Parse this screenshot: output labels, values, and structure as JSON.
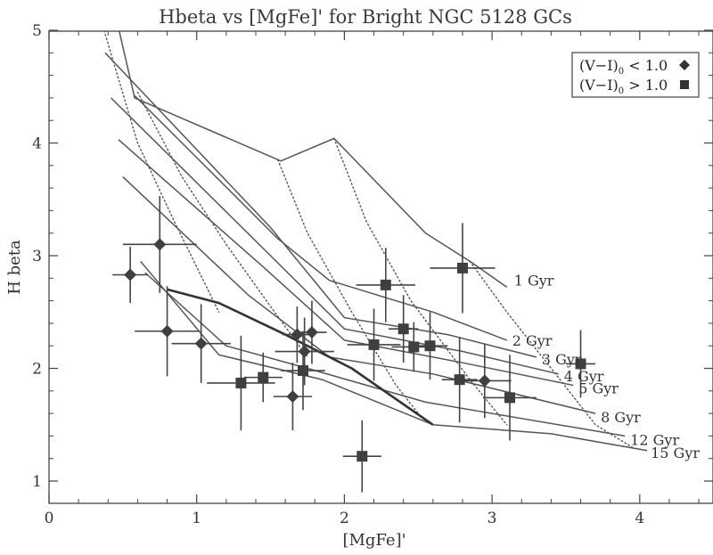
{
  "chart_data": {
    "type": "scatter",
    "title": "Hbeta vs [MgFe]' for Bright NGC 5128 GCs",
    "xlabel": "[MgFe]'",
    "ylabel": "H beta",
    "xlim": [
      0,
      4.5
    ],
    "ylim": [
      0.8,
      5.0
    ],
    "xticks": [
      0,
      1,
      2,
      3,
      4
    ],
    "yticks": [
      1,
      2,
      3,
      4,
      5
    ],
    "grid": false,
    "legend_position": "top-right",
    "legend": [
      {
        "prefix": "(V−I)",
        "sub": "0",
        "suffix": " < 1.0",
        "marker": "diamond"
      },
      {
        "prefix": "(V−I)",
        "sub": "0",
        "suffix": " > 1.0",
        "marker": "square"
      }
    ],
    "isochrones": [
      {
        "label": "1 Gyr",
        "points": [
          [
            0.43,
            5.25
          ],
          [
            0.58,
            4.4
          ],
          [
            1.57,
            3.84
          ],
          [
            1.93,
            4.04
          ],
          [
            2.55,
            3.2
          ],
          [
            2.85,
            2.95
          ],
          [
            3.1,
            2.72
          ]
        ]
      },
      {
        "label": "2 Gyr",
        "points": [
          [
            0.58,
            4.42
          ],
          [
            1.55,
            3.15
          ],
          [
            1.9,
            2.78
          ],
          [
            2.6,
            2.5
          ],
          [
            3.1,
            2.25
          ]
        ]
      },
      {
        "label": "3 Gyr",
        "points": [
          [
            0.38,
            4.8
          ],
          [
            1.5,
            3.25
          ],
          [
            2.0,
            2.45
          ],
          [
            2.7,
            2.3
          ],
          [
            3.3,
            2.1
          ]
        ]
      },
      {
        "label": "4 Gyr",
        "points": [
          [
            0.42,
            4.4
          ],
          [
            1.5,
            3.0
          ],
          [
            2.0,
            2.35
          ],
          [
            2.8,
            2.15
          ],
          [
            3.45,
            1.95
          ]
        ]
      },
      {
        "label": "5 Gyr",
        "points": [
          [
            0.47,
            4.03
          ],
          [
            1.45,
            2.9
          ],
          [
            2.0,
            2.25
          ],
          [
            2.8,
            2.05
          ],
          [
            3.55,
            1.85
          ]
        ]
      },
      {
        "label": "8 Gyr",
        "points": [
          [
            0.5,
            3.7
          ],
          [
            1.35,
            2.65
          ],
          [
            1.9,
            2.1
          ],
          [
            2.6,
            1.95
          ],
          [
            3.7,
            1.6
          ]
        ]
      },
      {
        "label": "12 Gyr",
        "points": [
          [
            0.65,
            2.85
          ],
          [
            1.2,
            2.2
          ],
          [
            1.75,
            2.0
          ],
          [
            2.55,
            1.7
          ],
          [
            3.9,
            1.4
          ]
        ]
      },
      {
        "label": "15 Gyr",
        "points": [
          [
            0.62,
            2.95
          ],
          [
            1.15,
            2.12
          ],
          [
            1.85,
            1.9
          ],
          [
            2.6,
            1.5
          ],
          [
            3.4,
            1.42
          ],
          [
            4.05,
            1.27
          ]
        ]
      }
    ],
    "thick_line": {
      "points": [
        [
          0.8,
          2.7
        ],
        [
          1.15,
          2.58
        ],
        [
          1.6,
          2.3
        ],
        [
          2.05,
          2.0
        ],
        [
          2.6,
          1.5
        ]
      ]
    },
    "metallicity_lines": [
      {
        "points": [
          [
            0.35,
            5.1
          ],
          [
            0.6,
            4.0
          ],
          [
            0.85,
            3.3
          ],
          [
            1.15,
            2.5
          ]
        ]
      },
      {
        "points": [
          [
            0.6,
            4.45
          ],
          [
            0.9,
            3.7
          ],
          [
            1.2,
            3.1
          ],
          [
            1.5,
            2.55
          ],
          [
            1.75,
            2.1
          ]
        ]
      },
      {
        "points": [
          [
            1.55,
            3.85
          ],
          [
            1.75,
            3.2
          ],
          [
            2.05,
            2.5
          ],
          [
            2.35,
            1.85
          ],
          [
            2.5,
            1.6
          ]
        ]
      },
      {
        "points": [
          [
            1.93,
            4.04
          ],
          [
            2.15,
            3.3
          ],
          [
            2.45,
            2.6
          ],
          [
            2.85,
            1.9
          ],
          [
            3.1,
            1.5
          ]
        ]
      },
      {
        "points": [
          [
            2.85,
            2.95
          ],
          [
            3.1,
            2.5
          ],
          [
            3.4,
            2.0
          ],
          [
            3.7,
            1.5
          ],
          [
            3.95,
            1.3
          ]
        ]
      }
    ],
    "series": [
      {
        "marker": "diamond",
        "points": [
          {
            "x": 0.55,
            "y": 2.83,
            "xerr": 0.12,
            "yerr": 0.25
          },
          {
            "x": 0.75,
            "y": 3.1,
            "xerr": 0.25,
            "yerr": 0.43
          },
          {
            "x": 0.8,
            "y": 2.33,
            "xerr": 0.22,
            "yerr": 0.4
          },
          {
            "x": 1.03,
            "y": 2.22,
            "xerr": 0.2,
            "yerr": 0.35
          },
          {
            "x": 1.65,
            "y": 1.75,
            "xerr": 0.13,
            "yerr": 0.3
          },
          {
            "x": 1.68,
            "y": 2.3,
            "xerr": 0.1,
            "yerr": 0.25
          },
          {
            "x": 1.73,
            "y": 2.15,
            "xerr": 0.2,
            "yerr": 0.3
          },
          {
            "x": 1.78,
            "y": 2.32,
            "xerr": 0.1,
            "yerr": 0.28
          },
          {
            "x": 2.95,
            "y": 1.89,
            "xerr": 0.18,
            "yerr": 0.33
          }
        ]
      },
      {
        "marker": "square",
        "points": [
          {
            "x": 1.3,
            "y": 1.87,
            "xerr": 0.23,
            "yerr": 0.42
          },
          {
            "x": 1.45,
            "y": 1.92,
            "xerr": 0.13,
            "yerr": 0.22
          },
          {
            "x": 1.72,
            "y": 1.98,
            "xerr": 0.15,
            "yerr": 0.35
          },
          {
            "x": 2.12,
            "y": 1.22,
            "xerr": 0.13,
            "yerr": 0.32
          },
          {
            "x": 2.2,
            "y": 2.21,
            "xerr": 0.18,
            "yerr": 0.32
          },
          {
            "x": 2.28,
            "y": 2.74,
            "xerr": 0.2,
            "yerr": 0.33
          },
          {
            "x": 2.4,
            "y": 2.35,
            "xerr": 0.1,
            "yerr": 0.3
          },
          {
            "x": 2.47,
            "y": 2.19,
            "xerr": 0.15,
            "yerr": 0.22
          },
          {
            "x": 2.58,
            "y": 2.2,
            "xerr": 0.12,
            "yerr": 0.3
          },
          {
            "x": 2.78,
            "y": 1.9,
            "xerr": 0.12,
            "yerr": 0.38
          },
          {
            "x": 2.8,
            "y": 2.89,
            "xerr": 0.22,
            "yerr": 0.4
          },
          {
            "x": 3.12,
            "y": 1.74,
            "xerr": 0.18,
            "yerr": 0.38
          },
          {
            "x": 3.6,
            "y": 2.04,
            "xerr": 0.1,
            "yerr": 0.3
          }
        ]
      }
    ]
  }
}
